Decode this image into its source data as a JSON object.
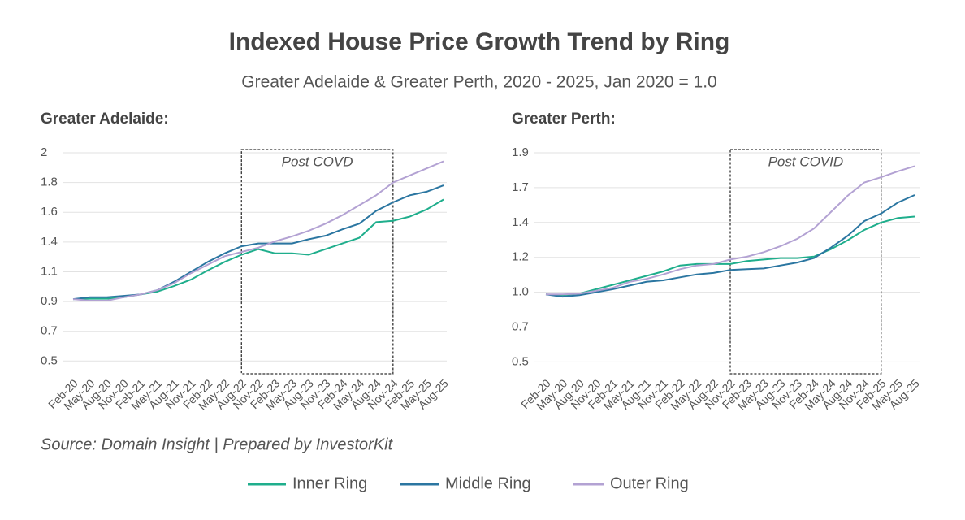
{
  "title": "Indexed House Price Growth Trend by Ring",
  "subtitle": "Greater Adelaide & Greater Perth, 2020 - 2025, Jan 2020 = 1.0",
  "source": "Source: Domain Insight | Prepared by InvestorKit",
  "chart_data": [
    {
      "type": "line",
      "title": "Greater Adelaide:",
      "categories": [
        "Feb-20",
        "May-20",
        "Aug-20",
        "Nov-20",
        "Feb-21",
        "May-21",
        "Aug-21",
        "Nov-21",
        "Feb-22",
        "May-22",
        "Aug-22",
        "Nov-22",
        "Feb-23",
        "May-23",
        "Aug-23",
        "Nov-23",
        "Feb-24",
        "May-24",
        "Aug-24",
        "Nov-24",
        "Feb-25",
        "May-25",
        "Aug-25"
      ],
      "series": [
        {
          "name": "Inner Ring",
          "color": "#1fae8c",
          "values": [
            0.947,
            0.95,
            0.95,
            0.96,
            0.98,
            1.0,
            1.04,
            1.085,
            1.15,
            1.21,
            1.26,
            1.3,
            1.27,
            1.27,
            1.26,
            1.3,
            1.34,
            1.38,
            1.49,
            1.5,
            1.53,
            1.58,
            1.65
          ]
        },
        {
          "name": "Middle Ring",
          "color": "#2b76a1",
          "values": [
            0.947,
            0.96,
            0.96,
            0.97,
            0.98,
            1.01,
            1.07,
            1.14,
            1.21,
            1.27,
            1.32,
            1.34,
            1.34,
            1.34,
            1.37,
            1.395,
            1.44,
            1.48,
            1.57,
            1.63,
            1.68,
            1.705,
            1.75
          ]
        },
        {
          "name": "Outer Ring",
          "color": "#b3a2d3",
          "values": [
            0.947,
            0.936,
            0.936,
            0.96,
            0.98,
            1.01,
            1.06,
            1.13,
            1.19,
            1.25,
            1.28,
            1.31,
            1.355,
            1.39,
            1.43,
            1.48,
            1.54,
            1.61,
            1.68,
            1.77,
            1.82,
            1.87,
            1.92
          ]
        }
      ],
      "ylim": [
        0.42,
        1.98
      ],
      "yticks": [
        {
          "value": 0.51,
          "label": "0.5"
        },
        {
          "value": 0.72,
          "label": "0.7"
        },
        {
          "value": 0.93,
          "label": "0.9"
        },
        {
          "value": 1.14,
          "label": "1.1"
        },
        {
          "value": 1.35,
          "label": "1.4"
        },
        {
          "value": 1.56,
          "label": "1.6"
        },
        {
          "value": 1.77,
          "label": "1.8"
        },
        {
          "value": 1.98,
          "label": "2"
        }
      ],
      "grid": true,
      "annotation": {
        "text": "Post COVD",
        "x_range": [
          "Aug-22",
          "Nov-24"
        ]
      }
    },
    {
      "type": "line",
      "title": "Greater Perth:",
      "categories": [
        "Feb-20",
        "May-20",
        "Aug-20",
        "Nov-20",
        "Feb-21",
        "May-21",
        "Aug-21",
        "Nov-21",
        "Feb-22",
        "May-22",
        "Aug-22",
        "Nov-22",
        "Feb-23",
        "May-23",
        "Aug-23",
        "Nov-23",
        "Feb-24",
        "May-24",
        "Aug-24",
        "Nov-24",
        "Feb-25",
        "May-25",
        "Aug-25"
      ],
      "series": [
        {
          "name": "Inner Ring",
          "color": "#1fae8c",
          "values": [
            0.945,
            0.94,
            0.95,
            0.98,
            1.01,
            1.04,
            1.07,
            1.1,
            1.14,
            1.15,
            1.15,
            1.15,
            1.17,
            1.18,
            1.19,
            1.19,
            1.2,
            1.25,
            1.31,
            1.38,
            1.43,
            1.46,
            1.47
          ]
        },
        {
          "name": "Middle Ring",
          "color": "#2b76a1",
          "values": [
            0.945,
            0.93,
            0.94,
            0.96,
            0.98,
            1.005,
            1.03,
            1.04,
            1.06,
            1.08,
            1.09,
            1.11,
            1.115,
            1.12,
            1.14,
            1.16,
            1.19,
            1.26,
            1.34,
            1.44,
            1.49,
            1.565,
            1.615
          ]
        },
        {
          "name": "Outer Ring",
          "color": "#b3a2d3",
          "values": [
            0.945,
            0.945,
            0.95,
            0.97,
            0.99,
            1.03,
            1.05,
            1.08,
            1.115,
            1.14,
            1.15,
            1.18,
            1.2,
            1.23,
            1.27,
            1.32,
            1.39,
            1.5,
            1.61,
            1.7,
            1.735,
            1.775,
            1.81
          ]
        }
      ],
      "ylim": [
        0.41,
        1.9
      ],
      "yticks": [
        {
          "value": 0.49,
          "label": "0.5"
        },
        {
          "value": 0.725,
          "label": "0.7"
        },
        {
          "value": 0.96,
          "label": "1.0"
        },
        {
          "value": 1.195,
          "label": "1.2"
        },
        {
          "value": 1.43,
          "label": "1.4"
        },
        {
          "value": 1.665,
          "label": "1.7"
        },
        1.9
      ],
      "grid": true,
      "annotation": {
        "text": "Post COVID",
        "x_range": [
          "Nov-22",
          "Feb-25"
        ]
      }
    }
  ]
}
